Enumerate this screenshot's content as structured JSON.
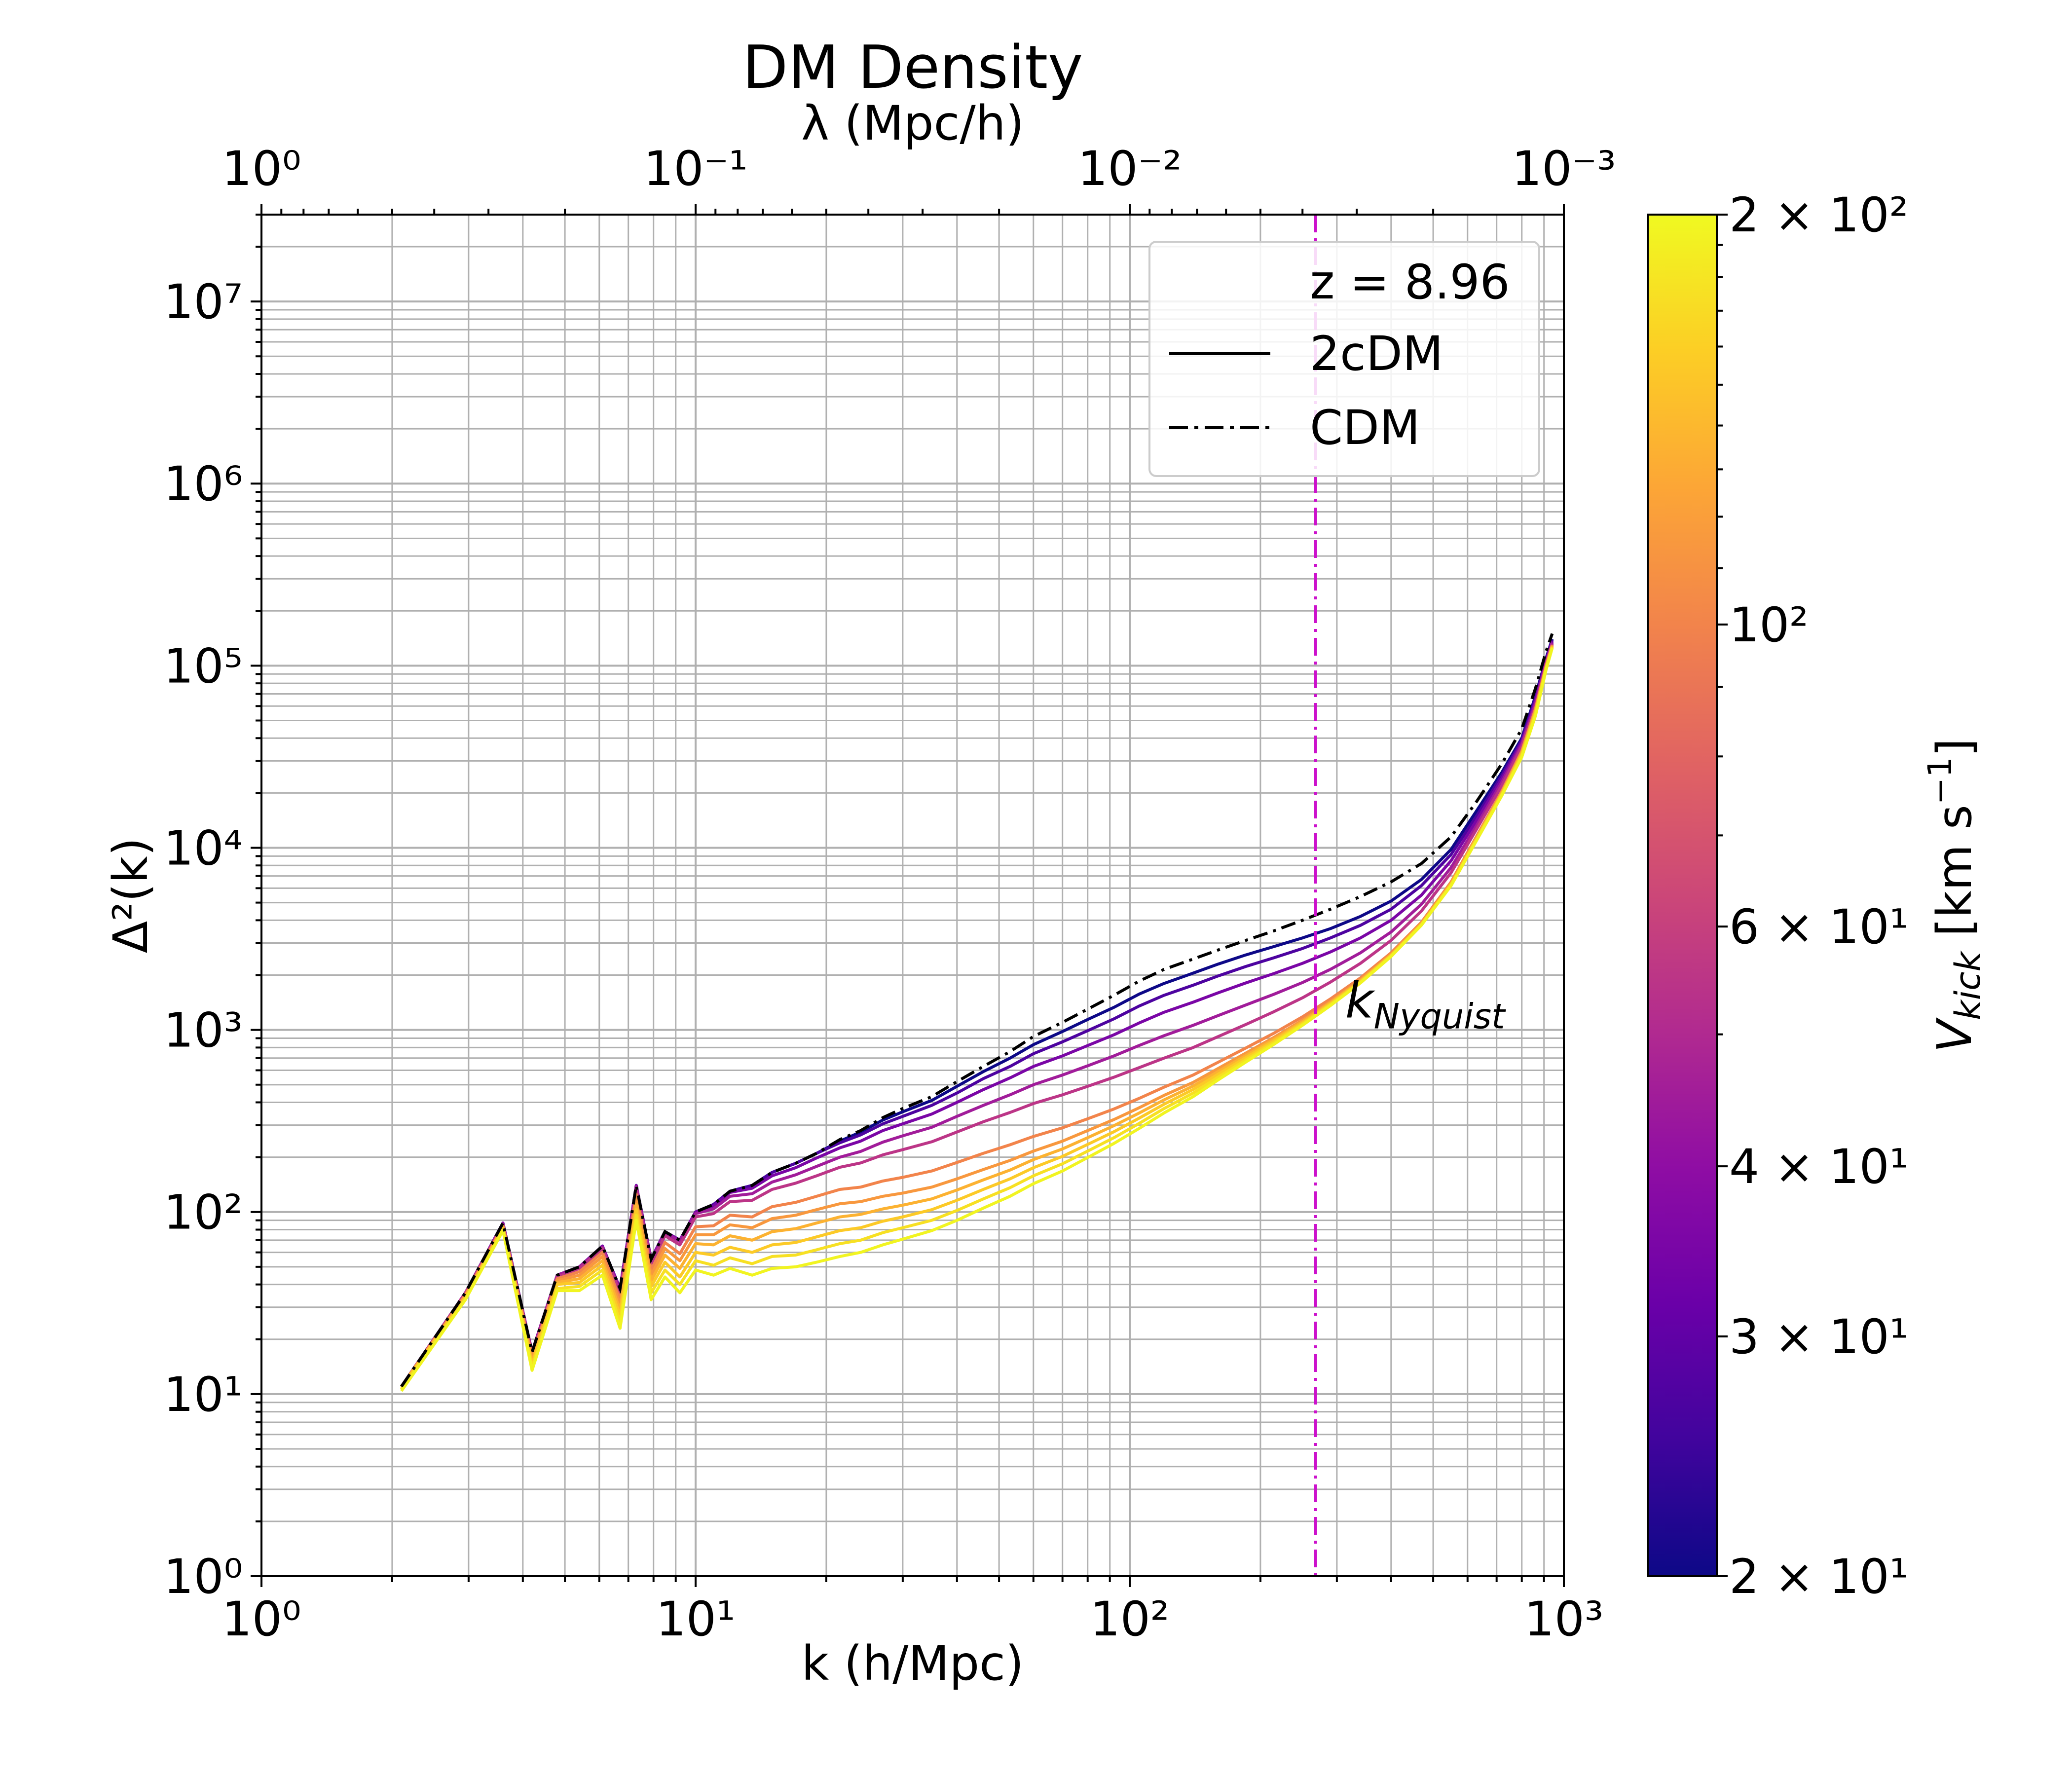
{
  "chart_data": {
    "type": "line",
    "title": "DM Density",
    "xlabel": "k (h/Mpc)",
    "ylabel": "Δ²(k)",
    "top_xlabel": "λ (Mpc/h)",
    "xscale": "log",
    "yscale": "log",
    "xlim": [
      1,
      1000
    ],
    "ylim": [
      1,
      30000000
    ],
    "grid": true,
    "x_ticks": [
      {
        "value": 1,
        "label": "10⁰"
      },
      {
        "value": 10,
        "label": "10¹"
      },
      {
        "value": 100,
        "label": "10²"
      },
      {
        "value": 1000,
        "label": "10³"
      }
    ],
    "y_ticks": [
      {
        "value": 1,
        "label": "10⁰"
      },
      {
        "value": 10,
        "label": "10¹"
      },
      {
        "value": 100,
        "label": "10²"
      },
      {
        "value": 1000,
        "label": "10³"
      },
      {
        "value": 10000,
        "label": "10⁴"
      },
      {
        "value": 100000,
        "label": "10⁵"
      },
      {
        "value": 1000000,
        "label": "10⁶"
      },
      {
        "value": 10000000,
        "label": "10⁷"
      }
    ],
    "top_ticks": [
      {
        "value": 1,
        "label": "10⁰"
      },
      {
        "value": 0.1,
        "label": "10⁻¹"
      },
      {
        "value": 0.01,
        "label": "10⁻²"
      },
      {
        "value": 0.001,
        "label": "10⁻³"
      }
    ],
    "legend": {
      "placement": "top-right",
      "title": "z = 8.96",
      "entries": [
        {
          "label": "2cDM",
          "style": "solid"
        },
        {
          "label": "CDM",
          "style": "dashdot"
        }
      ]
    },
    "vline": {
      "x": 268,
      "label": "k",
      "label_sub": "Nyquist",
      "color": "#cc11cc"
    },
    "colorbar": {
      "label": "V",
      "label_sub": "kick",
      "label_units": " [km s",
      "label_units_sup": "−1",
      "label_units_end": "]",
      "scale": "log",
      "range": [
        20,
        200
      ],
      "colormap": "plasma",
      "ticks": [
        {
          "value": 20,
          "label": "2 × 10¹"
        },
        {
          "value": 30,
          "label": "3 × 10¹"
        },
        {
          "value": 40,
          "label": "4 × 10¹"
        },
        {
          "value": 60,
          "label": "6 × 10¹"
        },
        {
          "value": 100,
          "label": "10²"
        },
        {
          "value": 200,
          "label": "2 × 10²"
        }
      ],
      "gradient_stops": [
        "#0d0887",
        "#41049d",
        "#6a00a8",
        "#8f0da4",
        "#b12a90",
        "#cc4778",
        "#e16462",
        "#f2844b",
        "#fca636",
        "#fcce25",
        "#f0f921"
      ]
    },
    "k_points": [
      2.1,
      2.95,
      3.6,
      4.2,
      4.8,
      5.4,
      6.1,
      6.7,
      7.3,
      7.9,
      8.5,
      9.2,
      10.0,
      11.0,
      12.0,
      13.5,
      15.0,
      17.0,
      19.0,
      21.5,
      24.0,
      27.0,
      30.0,
      35.0,
      40.0,
      46.0,
      53.0,
      60.0,
      70.0,
      80.0,
      92.0,
      105.0,
      120.0,
      140.0,
      160.0,
      185.0,
      215.0,
      250.0,
      290.0,
      340.0,
      400.0,
      470.0,
      550.0,
      630.0,
      720.0,
      800.0,
      860.0,
      910.0,
      940.0
    ],
    "cdm": [
      11.0,
      36.0,
      87.0,
      17.0,
      45.0,
      50.0,
      65.0,
      38.0,
      140.0,
      55.0,
      78.0,
      70.0,
      100.0,
      110.0,
      130.0,
      140.0,
      165.0,
      185.0,
      210.0,
      250.0,
      280.0,
      330.0,
      370.0,
      430.0,
      520.0,
      630.0,
      760.0,
      920.0,
      1100.0,
      1300.0,
      1550.0,
      1850.0,
      2150.0,
      2450.0,
      2750.0,
      3100.0,
      3500.0,
      4000.0,
      4600.0,
      5400.0,
      6500.0,
      8200.0,
      11500.0,
      18000.0,
      29000.0,
      45000.0,
      75000.0,
      120000.0,
      150000.0
    ],
    "series": [
      {
        "name": "",
        "vkick": 20,
        "values": [
          11.0,
          36.0,
          87.0,
          17.0,
          45.0,
          50.0,
          65.0,
          38.0,
          140.0,
          55.0,
          78.0,
          70.0,
          100.0,
          110.0,
          130.0,
          140.0,
          165.0,
          185.0,
          210.0,
          245.0,
          275.0,
          320.0,
          355.0,
          410.0,
          490.0,
          590.0,
          700.0,
          830.0,
          980.0,
          1140.0,
          1330.0,
          1570.0,
          1800.0,
          2050.0,
          2300.0,
          2580.0,
          2870.0,
          3200.0,
          3600.0,
          4200.0,
          5100.0,
          6700.0,
          9800.0,
          16000.0,
          26000.0,
          40000.0,
          68000.0,
          110000.0,
          140000.0
        ]
      },
      {
        "name": "",
        "vkick": 27,
        "values": [
          11.0,
          36.0,
          87.0,
          17.0,
          45.0,
          50.0,
          65.0,
          38.0,
          140.0,
          55.0,
          78.0,
          70.0,
          100.0,
          110.0,
          130.0,
          140.0,
          165.0,
          185.0,
          210.0,
          240.0,
          265.0,
          305.0,
          335.0,
          385.0,
          450.0,
          540.0,
          630.0,
          740.0,
          860.0,
          990.0,
          1150.0,
          1350.0,
          1550.0,
          1760.0,
          1980.0,
          2230.0,
          2490.0,
          2800.0,
          3200.0,
          3750.0,
          4600.0,
          6200.0,
          9200.0,
          15000.0,
          25000.0,
          39000.0,
          66000.0,
          108000.0,
          138000.0
        ]
      },
      {
        "name": "",
        "vkick": 35,
        "values": [
          11.0,
          36.0,
          87.0,
          17.0,
          45.0,
          50.0,
          65.0,
          38.0,
          140.0,
          55.0,
          78.0,
          70.0,
          100.0,
          108.0,
          128.0,
          135.0,
          158.0,
          175.0,
          198.0,
          225.0,
          245.0,
          280.0,
          305.0,
          345.0,
          400.0,
          470.0,
          545.0,
          630.0,
          720.0,
          820.0,
          940.0,
          1090.0,
          1250.0,
          1420.0,
          1600.0,
          1810.0,
          2040.0,
          2320.0,
          2680.0,
          3200.0,
          4000.0,
          5500.0,
          8500.0,
          14200.0,
          24000.0,
          38000.0,
          64000.0,
          106000.0,
          136000.0
        ]
      },
      {
        "name": "",
        "vkick": 45,
        "values": [
          11.0,
          36.0,
          86.0,
          17.0,
          45.0,
          50.0,
          64.0,
          37.0,
          138.0,
          54.0,
          77.0,
          69.0,
          98.0,
          104.0,
          122.0,
          126.0,
          146.0,
          160.0,
          178.0,
          200.0,
          215.0,
          242.0,
          262.0,
          292.0,
          335.0,
          385.0,
          440.0,
          500.0,
          565.0,
          635.0,
          720.0,
          820.0,
          930.0,
          1060.0,
          1200.0,
          1370.0,
          1570.0,
          1820.0,
          2150.0,
          2650.0,
          3450.0,
          4900.0,
          7800.0,
          13300.0,
          23000.0,
          37000.0,
          62000.0,
          104000.0,
          134000.0
        ]
      },
      {
        "name": "",
        "vkick": 55,
        "values": [
          11.0,
          36.0,
          85.0,
          16.5,
          44.0,
          49.0,
          63.0,
          36.0,
          134.0,
          52.0,
          74.0,
          66.0,
          94.0,
          98.0,
          114.0,
          116.0,
          133.0,
          144.0,
          158.0,
          176.0,
          186.0,
          206.0,
          220.0,
          243.0,
          275.0,
          313.0,
          352.0,
          394.0,
          440.0,
          490.0,
          550.0,
          620.0,
          700.0,
          800.0,
          920.0,
          1070.0,
          1260.0,
          1500.0,
          1830.0,
          2320.0,
          3100.0,
          4500.0,
          7300.0,
          12700.0,
          22000.0,
          36000.0,
          60000.0,
          102000.0,
          132000.0
        ]
      },
      {
        "name": "",
        "vkick": 100,
        "values": [
          11.0,
          35.0,
          84.0,
          16.0,
          43.0,
          47.0,
          60.0,
          33.0,
          125.0,
          48.0,
          68.0,
          59.0,
          83.0,
          84.0,
          96.0,
          94.0,
          107.0,
          113.0,
          122.0,
          133.0,
          137.0,
          148.0,
          155.0,
          168.0,
          187.0,
          210.0,
          234.0,
          260.0,
          290.0,
          325.0,
          368.0,
          420.0,
          485.0,
          565.0,
          665.0,
          795.0,
          960.0,
          1180.0,
          1480.0,
          1930.0,
          2650.0,
          3900.0,
          6500.0,
          11600.0,
          20500.0,
          34000.0,
          58000.0,
          100000.0,
          130000.0
        ]
      },
      {
        "name": "",
        "vkick": 115,
        "values": [
          11.0,
          35.0,
          83.0,
          15.5,
          42.0,
          45.0,
          57.0,
          31.0,
          118.0,
          45.0,
          63.0,
          54.0,
          75.0,
          75.0,
          85.0,
          82.0,
          92.0,
          96.0,
          103.0,
          111.0,
          114.0,
          122.0,
          127.0,
          137.0,
          152.0,
          171.0,
          192.0,
          216.0,
          245.0,
          280.0,
          322.0,
          373.0,
          437.0,
          515.0,
          615.0,
          745.0,
          910.0,
          1130.0,
          1430.0,
          1880.0,
          2600.0,
          3850.0,
          6400.0,
          11400.0,
          20200.0,
          33500.0,
          57000.0,
          99000.0,
          129000.0
        ]
      },
      {
        "name": "",
        "vkick": 135,
        "values": [
          11.0,
          34.0,
          82.0,
          15.0,
          41.0,
          43.0,
          54.0,
          29.0,
          110.0,
          42.0,
          58.0,
          49.0,
          67.0,
          66.0,
          74.0,
          70.0,
          78.0,
          81.0,
          87.0,
          94.0,
          97.0,
          104.0,
          109.0,
          118.0,
          132.0,
          150.0,
          170.0,
          194.0,
          222.0,
          256.0,
          298.0,
          349.0,
          413.0,
          492.0,
          592.0,
          722.0,
          888.0,
          1110.0,
          1410.0,
          1860.0,
          2580.0,
          3820.0,
          6350.0,
          11300.0,
          20000.0,
          33000.0,
          56000.0,
          98000.0,
          128000.0
        ]
      },
      {
        "name": "",
        "vkick": 155,
        "values": [
          10.8,
          34.0,
          81.0,
          14.5,
          40.0,
          41.0,
          51.0,
          27.0,
          103.0,
          39.0,
          53.0,
          44.0,
          60.0,
          58.0,
          64.0,
          60.0,
          66.0,
          68.0,
          73.0,
          79.0,
          82.0,
          89.0,
          94.0,
          103.0,
          116.0,
          133.0,
          152.0,
          175.0,
          202.0,
          235.0,
          276.0,
          327.0,
          391.0,
          471.0,
          572.0,
          703.0,
          870.0,
          1090.0,
          1390.0,
          1840.0,
          2560.0,
          3800.0,
          6300.0,
          11200.0,
          19800.0,
          32500.0,
          55000.0,
          97000.0,
          127000.0
        ]
      },
      {
        "name": "",
        "vkick": 175,
        "values": [
          10.6,
          33.0,
          80.0,
          14.0,
          38.0,
          39.0,
          48.0,
          25.0,
          96.0,
          36.0,
          48.0,
          40.0,
          54.0,
          51.0,
          56.0,
          52.0,
          57.0,
          58.0,
          62.0,
          67.0,
          70.0,
          77.0,
          82.0,
          90.0,
          102.0,
          118.0,
          136.0,
          158.0,
          184.0,
          216.0,
          256.0,
          306.0,
          370.0,
          450.0,
          551.0,
          683.0,
          851.0,
          1075.0,
          1375.0,
          1825.0,
          2545.0,
          3780.0,
          6250.0,
          11100.0,
          19600.0,
          32000.0,
          54000.0,
          96000.0,
          126000.0
        ]
      },
      {
        "name": "",
        "vkick": 195,
        "values": [
          10.4,
          33.0,
          79.0,
          13.5,
          37.0,
          37.0,
          45.0,
          23.0,
          90.0,
          33.0,
          44.0,
          36.0,
          48.0,
          45.0,
          49.0,
          45.0,
          49.0,
          50.0,
          53.0,
          57.0,
          60.0,
          66.0,
          71.0,
          79.0,
          90.0,
          105.0,
          122.0,
          143.0,
          168.0,
          199.0,
          238.0,
          287.0,
          350.0,
          430.0,
          532.0,
          665.0,
          834.0,
          1060.0,
          1360.0,
          1810.0,
          2530.0,
          3760.0,
          6200.0,
          11000.0,
          19400.0,
          31500.0,
          53000.0,
          95000.0,
          125000.0
        ]
      }
    ]
  }
}
